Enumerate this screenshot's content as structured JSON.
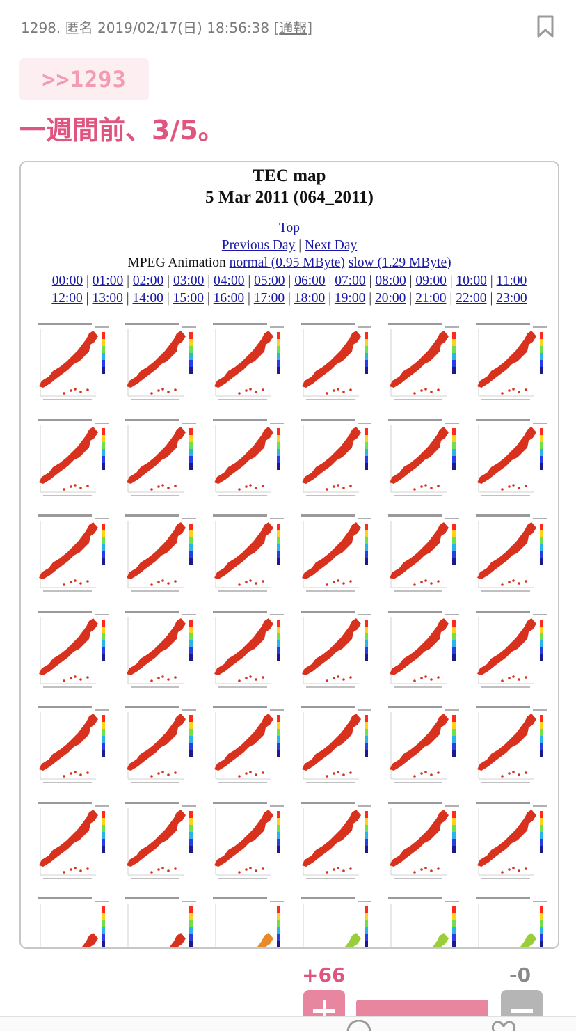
{
  "post": {
    "number": "1298.",
    "author": "匿名",
    "datetime": "2019/02/17(日) 18:56:38",
    "report_label": "通報",
    "anchor": ">>1293",
    "text": "一週間前、3/5。"
  },
  "tec_figure": {
    "title": "TEC map",
    "subtitle": "5 Mar 2011 (064_2011)",
    "top_link": "Top",
    "previous_day": "Previous Day",
    "next_day": "Next Day",
    "mpeg_label": "MPEG Animation",
    "mpeg_normal": "normal (0.95 MByte)",
    "mpeg_slow": "slow (1.29 MByte)",
    "hours_row1": [
      "00:00",
      "01:00",
      "02:00",
      "03:00",
      "04:00",
      "05:00",
      "06:00",
      "07:00",
      "08:00",
      "09:00",
      "10:00",
      "11:00"
    ],
    "hours_row2": [
      "12:00",
      "13:00",
      "14:00",
      "15:00",
      "16:00",
      "17:00",
      "18:00",
      "19:00",
      "20:00",
      "21:00",
      "22:00",
      "23:00"
    ],
    "thumbnail_rows": 7,
    "thumbnail_cols": 6,
    "thumbnail_tint_last_row": [
      "red",
      "red",
      "orange",
      "green",
      "green",
      "green"
    ]
  },
  "votes": {
    "plus": "+66",
    "minus": "-0"
  },
  "colors": {
    "accent": "#e0557f",
    "accent_light": "#f39bb3",
    "anchor_bg": "#fdeef2",
    "vote_bar": "#e9869f",
    "link": "#1a1aa6",
    "map_red": "#d8321e"
  },
  "icons": {
    "bookmark": "bookmark-icon",
    "plus": "plus-icon",
    "minus": "minus-icon"
  }
}
